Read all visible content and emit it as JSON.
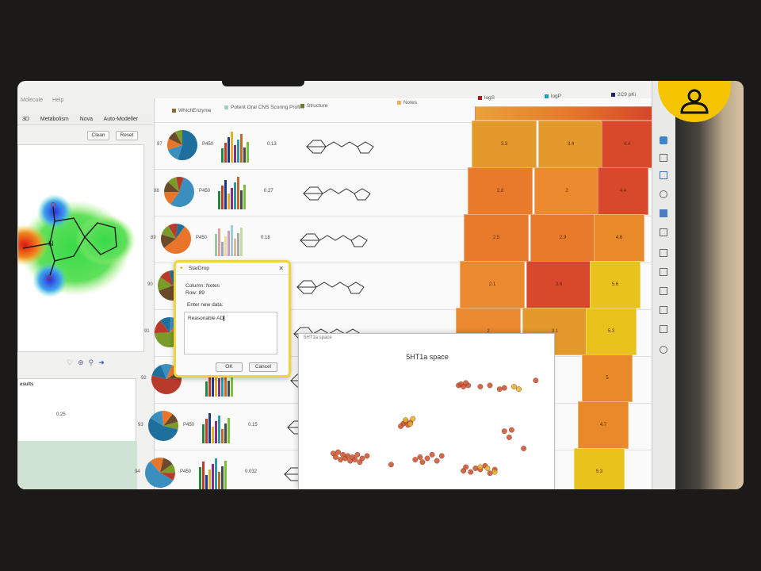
{
  "menubar": [
    "Molecule",
    "Help"
  ],
  "left_panel": {
    "tabs": [
      "3D",
      "Metabolism",
      "Nova",
      "Auto-Modeller"
    ],
    "clean_label": "Clean",
    "reset_label": "Reset",
    "results_label": "esults",
    "results_value": "0.25",
    "atom_labels": [
      "O",
      "N",
      "O"
    ]
  },
  "columns": {
    "enzyme": "WhichEnzyme",
    "cns": "Potent Oral CNS Scoring Profile",
    "structure": "Structure",
    "notes": "Notes",
    "logs": "logS",
    "logp": "logP",
    "pki": "2C9 pKi"
  },
  "colors": {
    "enzyme": "#8b6a2c",
    "cns": "#9fd0c8",
    "structure": "#6d7a2c",
    "notes": "#e8b35a",
    "logs": "#b3131b",
    "logp": "#1aa3b8",
    "pki": "#1d2270",
    "dialog_border": "#f1d43c",
    "badge": "#f5c400"
  },
  "rows": [
    {
      "id": "87",
      "enzyme": "P450",
      "score": "0.13",
      "logs": "3.3",
      "logp": "3.4",
      "pki": "4.4"
    },
    {
      "id": "88",
      "enzyme": "P450",
      "score": "0.27",
      "logs": "2.8",
      "logp": "2",
      "pki": "4.4"
    },
    {
      "id": "89",
      "enzyme": "P450",
      "score": "0.18",
      "logs": "2.5",
      "logp": "2.9",
      "pki": "4.6"
    },
    {
      "id": "90",
      "enzyme": "",
      "score": "",
      "logs": "2.1",
      "logp": "3.6",
      "pki": "5.6"
    },
    {
      "id": "91",
      "enzyme": "",
      "score": "",
      "logs": "2",
      "logp": "3.1",
      "pki": "5.3"
    },
    {
      "id": "92",
      "enzyme": "",
      "score": "",
      "logs": "",
      "logp": "",
      "pki": "5"
    },
    {
      "id": "93",
      "enzyme": "P450",
      "score": "0.15",
      "logs": "",
      "logp": "",
      "pki": "4.7"
    },
    {
      "id": "94",
      "enzyme": "P450",
      "score": "0.032",
      "logs": "",
      "logp": "",
      "pki": "5.3"
    }
  ],
  "dialog": {
    "title": "StarDrop",
    "column_line": "Column: Notes",
    "row_line": "Row: 89",
    "prompt": "Enter new data:",
    "value": "Reasonable AD",
    "ok_label": "OK",
    "cancel_label": "Cancel"
  },
  "scatter_window": {
    "window_title": "5HT1a space",
    "chart_title": "5HT1a space"
  },
  "chart_data": {
    "type": "scatter",
    "title": "5HT1a space",
    "xlabel": "",
    "ylabel": "",
    "xlim": [
      0,
      100
    ],
    "ylim": [
      0,
      100
    ],
    "grid": false,
    "series": [
      {
        "color": "#c9512c",
        "points": [
          [
            63,
            84
          ],
          [
            64,
            85
          ],
          [
            65,
            83
          ],
          [
            67,
            84
          ],
          [
            66,
            86
          ],
          [
            72,
            83
          ],
          [
            76,
            84
          ],
          [
            80,
            81
          ],
          [
            82,
            82
          ],
          [
            95,
            88
          ],
          [
            40,
            53
          ],
          [
            41,
            55
          ],
          [
            42,
            52
          ],
          [
            43,
            54
          ],
          [
            39,
            51
          ],
          [
            11,
            29
          ],
          [
            12,
            26
          ],
          [
            13,
            30
          ],
          [
            14,
            24
          ],
          [
            15,
            28
          ],
          [
            16,
            25
          ],
          [
            17,
            27
          ],
          [
            18,
            23
          ],
          [
            19,
            26
          ],
          [
            20,
            24
          ],
          [
            21,
            28
          ],
          [
            22,
            22
          ],
          [
            23,
            25
          ],
          [
            25,
            27
          ],
          [
            35,
            20
          ],
          [
            45,
            24
          ],
          [
            47,
            26
          ],
          [
            48,
            22
          ],
          [
            50,
            25
          ],
          [
            52,
            28
          ],
          [
            54,
            23
          ],
          [
            56,
            27
          ],
          [
            65,
            15
          ],
          [
            66,
            18
          ],
          [
            68,
            14
          ],
          [
            70,
            17
          ],
          [
            72,
            16
          ],
          [
            74,
            19
          ],
          [
            76,
            13
          ],
          [
            78,
            16
          ],
          [
            82,
            47
          ],
          [
            84,
            42
          ],
          [
            85,
            48
          ],
          [
            90,
            33
          ]
        ]
      },
      {
        "color": "#e3b127",
        "points": [
          [
            41,
            56
          ],
          [
            43,
            53
          ],
          [
            44,
            57
          ],
          [
            72,
            18
          ],
          [
            75,
            17
          ],
          [
            78,
            14
          ],
          [
            86,
            83
          ],
          [
            88,
            81
          ]
        ]
      }
    ]
  }
}
